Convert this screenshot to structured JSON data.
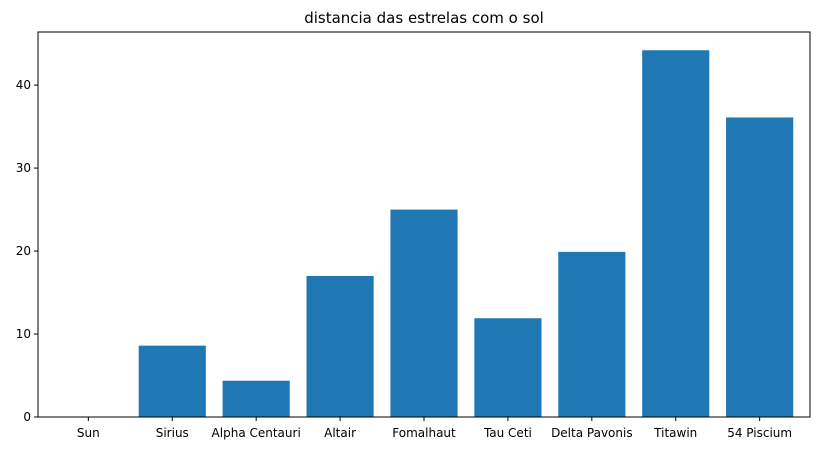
{
  "chart_data": {
    "type": "bar",
    "title": "distancia das estrelas com o sol",
    "xlabel": "",
    "ylabel": "",
    "categories": [
      "Sun",
      "Sirius",
      "Alpha Centauri",
      "Altair",
      "Fomalhaut",
      "Tau Ceti",
      "Delta Pavonis",
      "Titawin",
      "54 Piscium"
    ],
    "values": [
      0,
      8.6,
      4.37,
      17,
      25,
      11.9,
      19.9,
      44.2,
      36.1
    ],
    "ylim": [
      0,
      46.4
    ],
    "yticks": [
      0,
      10,
      20,
      30,
      40
    ],
    "grid": false,
    "legend": "none",
    "bar_color": "#1f77b4"
  }
}
